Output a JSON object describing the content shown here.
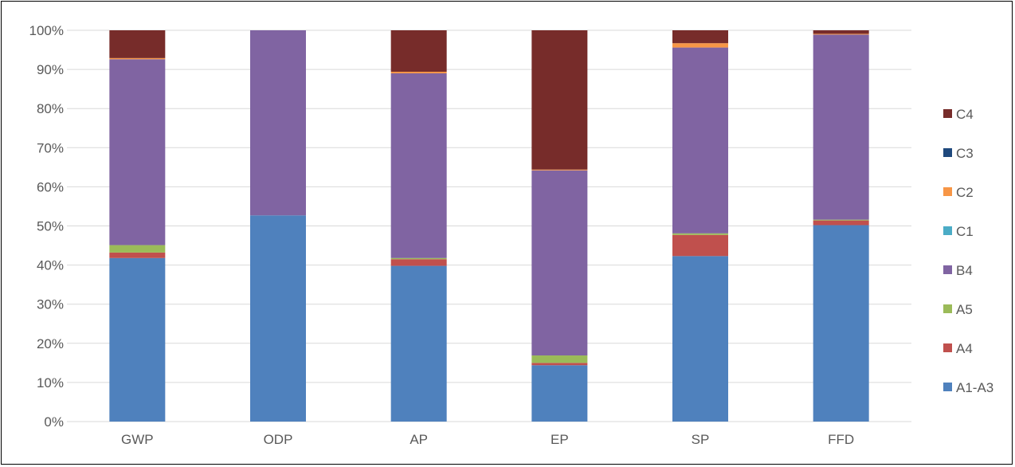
{
  "chart_data": {
    "type": "bar",
    "stacked": "percent",
    "categories": [
      "GWP",
      "ODP",
      "AP",
      "EP",
      "SP",
      "FFD"
    ],
    "y_ticks": [
      "0%",
      "10%",
      "20%",
      "30%",
      "40%",
      "50%",
      "60%",
      "70%",
      "80%",
      "90%",
      "100%"
    ],
    "ylim": [
      0,
      100
    ],
    "grid": true,
    "legend_position": "right",
    "series": [
      {
        "name": "A1-A3",
        "color": "#4F81BD",
        "values": [
          41.8,
          52.7,
          39.8,
          14.4,
          42.3,
          50.2
        ]
      },
      {
        "name": "A4",
        "color": "#C0504D",
        "values": [
          1.4,
          0.0,
          1.7,
          0.6,
          5.4,
          1.2
        ]
      },
      {
        "name": "A5",
        "color": "#9BBB59",
        "values": [
          1.9,
          0.0,
          0.3,
          1.9,
          0.4,
          0.2
        ]
      },
      {
        "name": "B4",
        "color": "#8064A2",
        "values": [
          47.5,
          47.3,
          47.2,
          47.3,
          47.5,
          47.3
        ]
      },
      {
        "name": "C1",
        "color": "#4BACC6",
        "values": [
          0.0,
          0.0,
          0.0,
          0.0,
          0.0,
          0.0
        ]
      },
      {
        "name": "C2",
        "color": "#F79646",
        "values": [
          0.3,
          0.0,
          0.4,
          0.2,
          1.1,
          0.2
        ]
      },
      {
        "name": "C3",
        "color": "#1F497D",
        "values": [
          0.0,
          0.0,
          0.0,
          0.0,
          0.0,
          0.0
        ]
      },
      {
        "name": "C4",
        "color": "#772C2A",
        "values": [
          7.1,
          0.0,
          10.6,
          35.6,
          3.3,
          0.9
        ]
      }
    ],
    "legend_order": [
      "C4",
      "C3",
      "C2",
      "C1",
      "B4",
      "A5",
      "A4",
      "A1-A3"
    ]
  }
}
